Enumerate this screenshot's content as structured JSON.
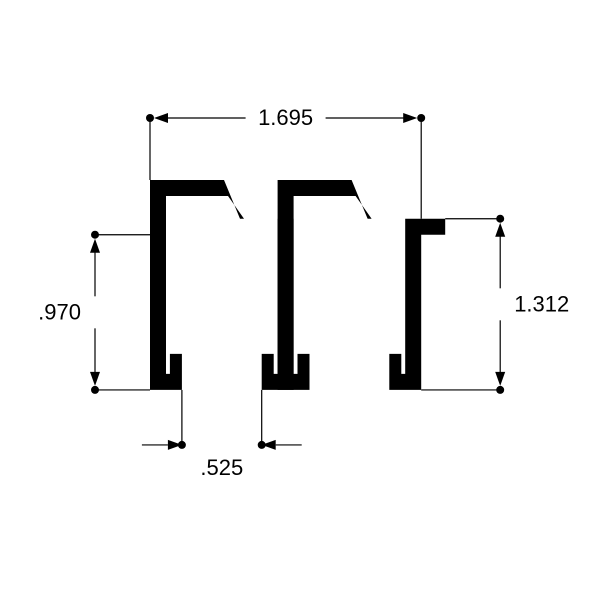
{
  "type": "engineering-profile",
  "background_color": "#ffffff",
  "stroke_color": "#000000",
  "profile_color": "#000000",
  "font_size_pt": 16,
  "dimensions": {
    "top_width": {
      "label": "1.695",
      "value": 1.695
    },
    "right_height": {
      "label": "1.312",
      "value": 1.312
    },
    "left_height": {
      "label": ".970",
      "value": 0.97
    },
    "bottom_gap": {
      "label": ".525",
      "value": 0.525
    }
  },
  "dot_radius": 4,
  "arrow_len": 14,
  "arrow_half": 5
}
